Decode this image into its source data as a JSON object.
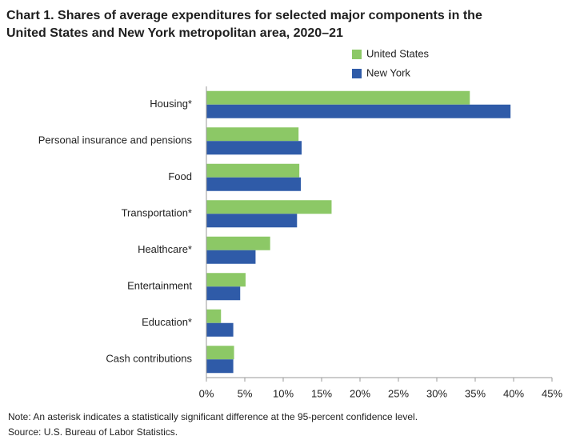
{
  "chart_data": {
    "type": "hbar",
    "title": [
      "Chart 1. Shares of average expenditures for selected major components in the",
      "United States and New York metropolitan area, 2020–21"
    ],
    "categories": [
      "Housing*",
      "Personal insurance and pensions",
      "Food",
      "Transportation*",
      "Healthcare*",
      "Entertainment",
      "Education*",
      "Cash contributions"
    ],
    "series": [
      {
        "name": "United States",
        "color": "#8cc866",
        "values": [
          34.3,
          12.0,
          12.1,
          16.3,
          8.3,
          5.1,
          1.9,
          3.6
        ]
      },
      {
        "name": "New York",
        "color": "#2f5ba8",
        "values": [
          39.6,
          12.4,
          12.3,
          11.8,
          6.4,
          4.4,
          3.5,
          3.5
        ]
      }
    ],
    "xlim": [
      0,
      45
    ],
    "xticks": [
      {
        "value": 0,
        "label": "0%"
      },
      {
        "value": 5,
        "label": "5%"
      },
      {
        "value": 10,
        "label": "10%"
      },
      {
        "value": 15,
        "label": "15%"
      },
      {
        "value": 20,
        "label": "20%"
      },
      {
        "value": 25,
        "label": "25%"
      },
      {
        "value": 30,
        "label": "30%"
      },
      {
        "value": 35,
        "label": "35%"
      },
      {
        "value": 40,
        "label": "40%"
      },
      {
        "value": 45,
        "label": "45%"
      }
    ],
    "notes": [
      "Note: An asterisk indicates a statistically significant difference at the 95-percent confidence level.",
      "Source: U.S. Bureau of Labor Statistics."
    ],
    "grid": false
  }
}
